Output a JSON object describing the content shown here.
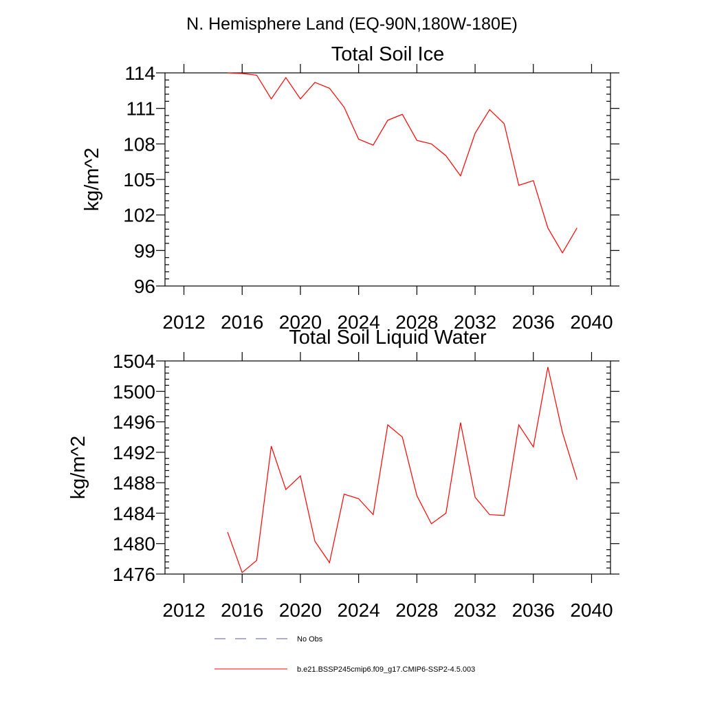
{
  "page_title": "N. Hemisphere Land (EQ-90N,180W-180E)",
  "colors": {
    "model_line": "#ff0000",
    "obs_line": "#5a5aa0",
    "axis": "#000000",
    "background": "#ffffff"
  },
  "legend": {
    "placement": "bottom-center",
    "entries": [
      {
        "label": "No Obs",
        "style": "dashed",
        "color": "#5a5aa0"
      },
      {
        "label": "b.e21.BSSP245cmip6.f09_g17.CMIP6-SSP2-4.5.003",
        "style": "solid",
        "color": "#ff0000"
      }
    ]
  },
  "chart_data": [
    {
      "type": "line",
      "title": "Total Soil Ice",
      "xlabel": "",
      "ylabel": "kg/m^2",
      "xlim": [
        2010.7,
        2041.3
      ],
      "ylim": [
        96,
        114
      ],
      "xticks": [
        2012,
        2016,
        2020,
        2024,
        2028,
        2032,
        2036,
        2040
      ],
      "yticks": [
        96,
        99,
        102,
        105,
        108,
        111,
        114
      ],
      "series": [
        {
          "name": "b.e21.BSSP245cmip6.f09_g17.CMIP6-SSP2-4.5.003",
          "x": [
            2015,
            2016,
            2017,
            2018,
            2019,
            2020,
            2021,
            2022,
            2023,
            2024,
            2025,
            2026,
            2027,
            2028,
            2029,
            2030,
            2031,
            2032,
            2033,
            2034,
            2035,
            2036,
            2037,
            2038,
            2039
          ],
          "values": [
            114.0,
            113.95,
            113.8,
            111.8,
            113.6,
            111.8,
            113.2,
            112.7,
            111.1,
            108.4,
            107.9,
            110.0,
            110.5,
            108.3,
            108.0,
            107.0,
            105.3,
            108.9,
            110.9,
            109.7,
            104.5,
            104.9,
            100.9,
            98.8,
            100.9
          ]
        }
      ]
    },
    {
      "type": "line",
      "title": "Total Soil Liquid Water",
      "xlabel": "",
      "ylabel": "kg/m^2",
      "xlim": [
        2010.7,
        2041.3
      ],
      "ylim": [
        1476,
        1504
      ],
      "xticks": [
        2012,
        2016,
        2020,
        2024,
        2028,
        2032,
        2036,
        2040
      ],
      "yticks": [
        1476,
        1480,
        1484,
        1488,
        1492,
        1496,
        1500,
        1504
      ],
      "series": [
        {
          "name": "b.e21.BSSP245cmip6.f09_g17.CMIP6-SSP2-4.5.003",
          "x": [
            2015,
            2016,
            2017,
            2018,
            2019,
            2020,
            2021,
            2022,
            2023,
            2024,
            2025,
            2026,
            2027,
            2028,
            2029,
            2030,
            2031,
            2032,
            2033,
            2034,
            2035,
            2036,
            2037,
            2038,
            2039
          ],
          "values": [
            1481.5,
            1476.2,
            1477.8,
            1492.8,
            1487.1,
            1488.9,
            1480.3,
            1477.5,
            1486.5,
            1485.9,
            1483.8,
            1495.6,
            1494.0,
            1486.3,
            1482.6,
            1484.0,
            1495.9,
            1486.1,
            1483.8,
            1483.7,
            1495.6,
            1492.7,
            1503.2,
            1494.6,
            1488.4
          ]
        }
      ]
    }
  ]
}
